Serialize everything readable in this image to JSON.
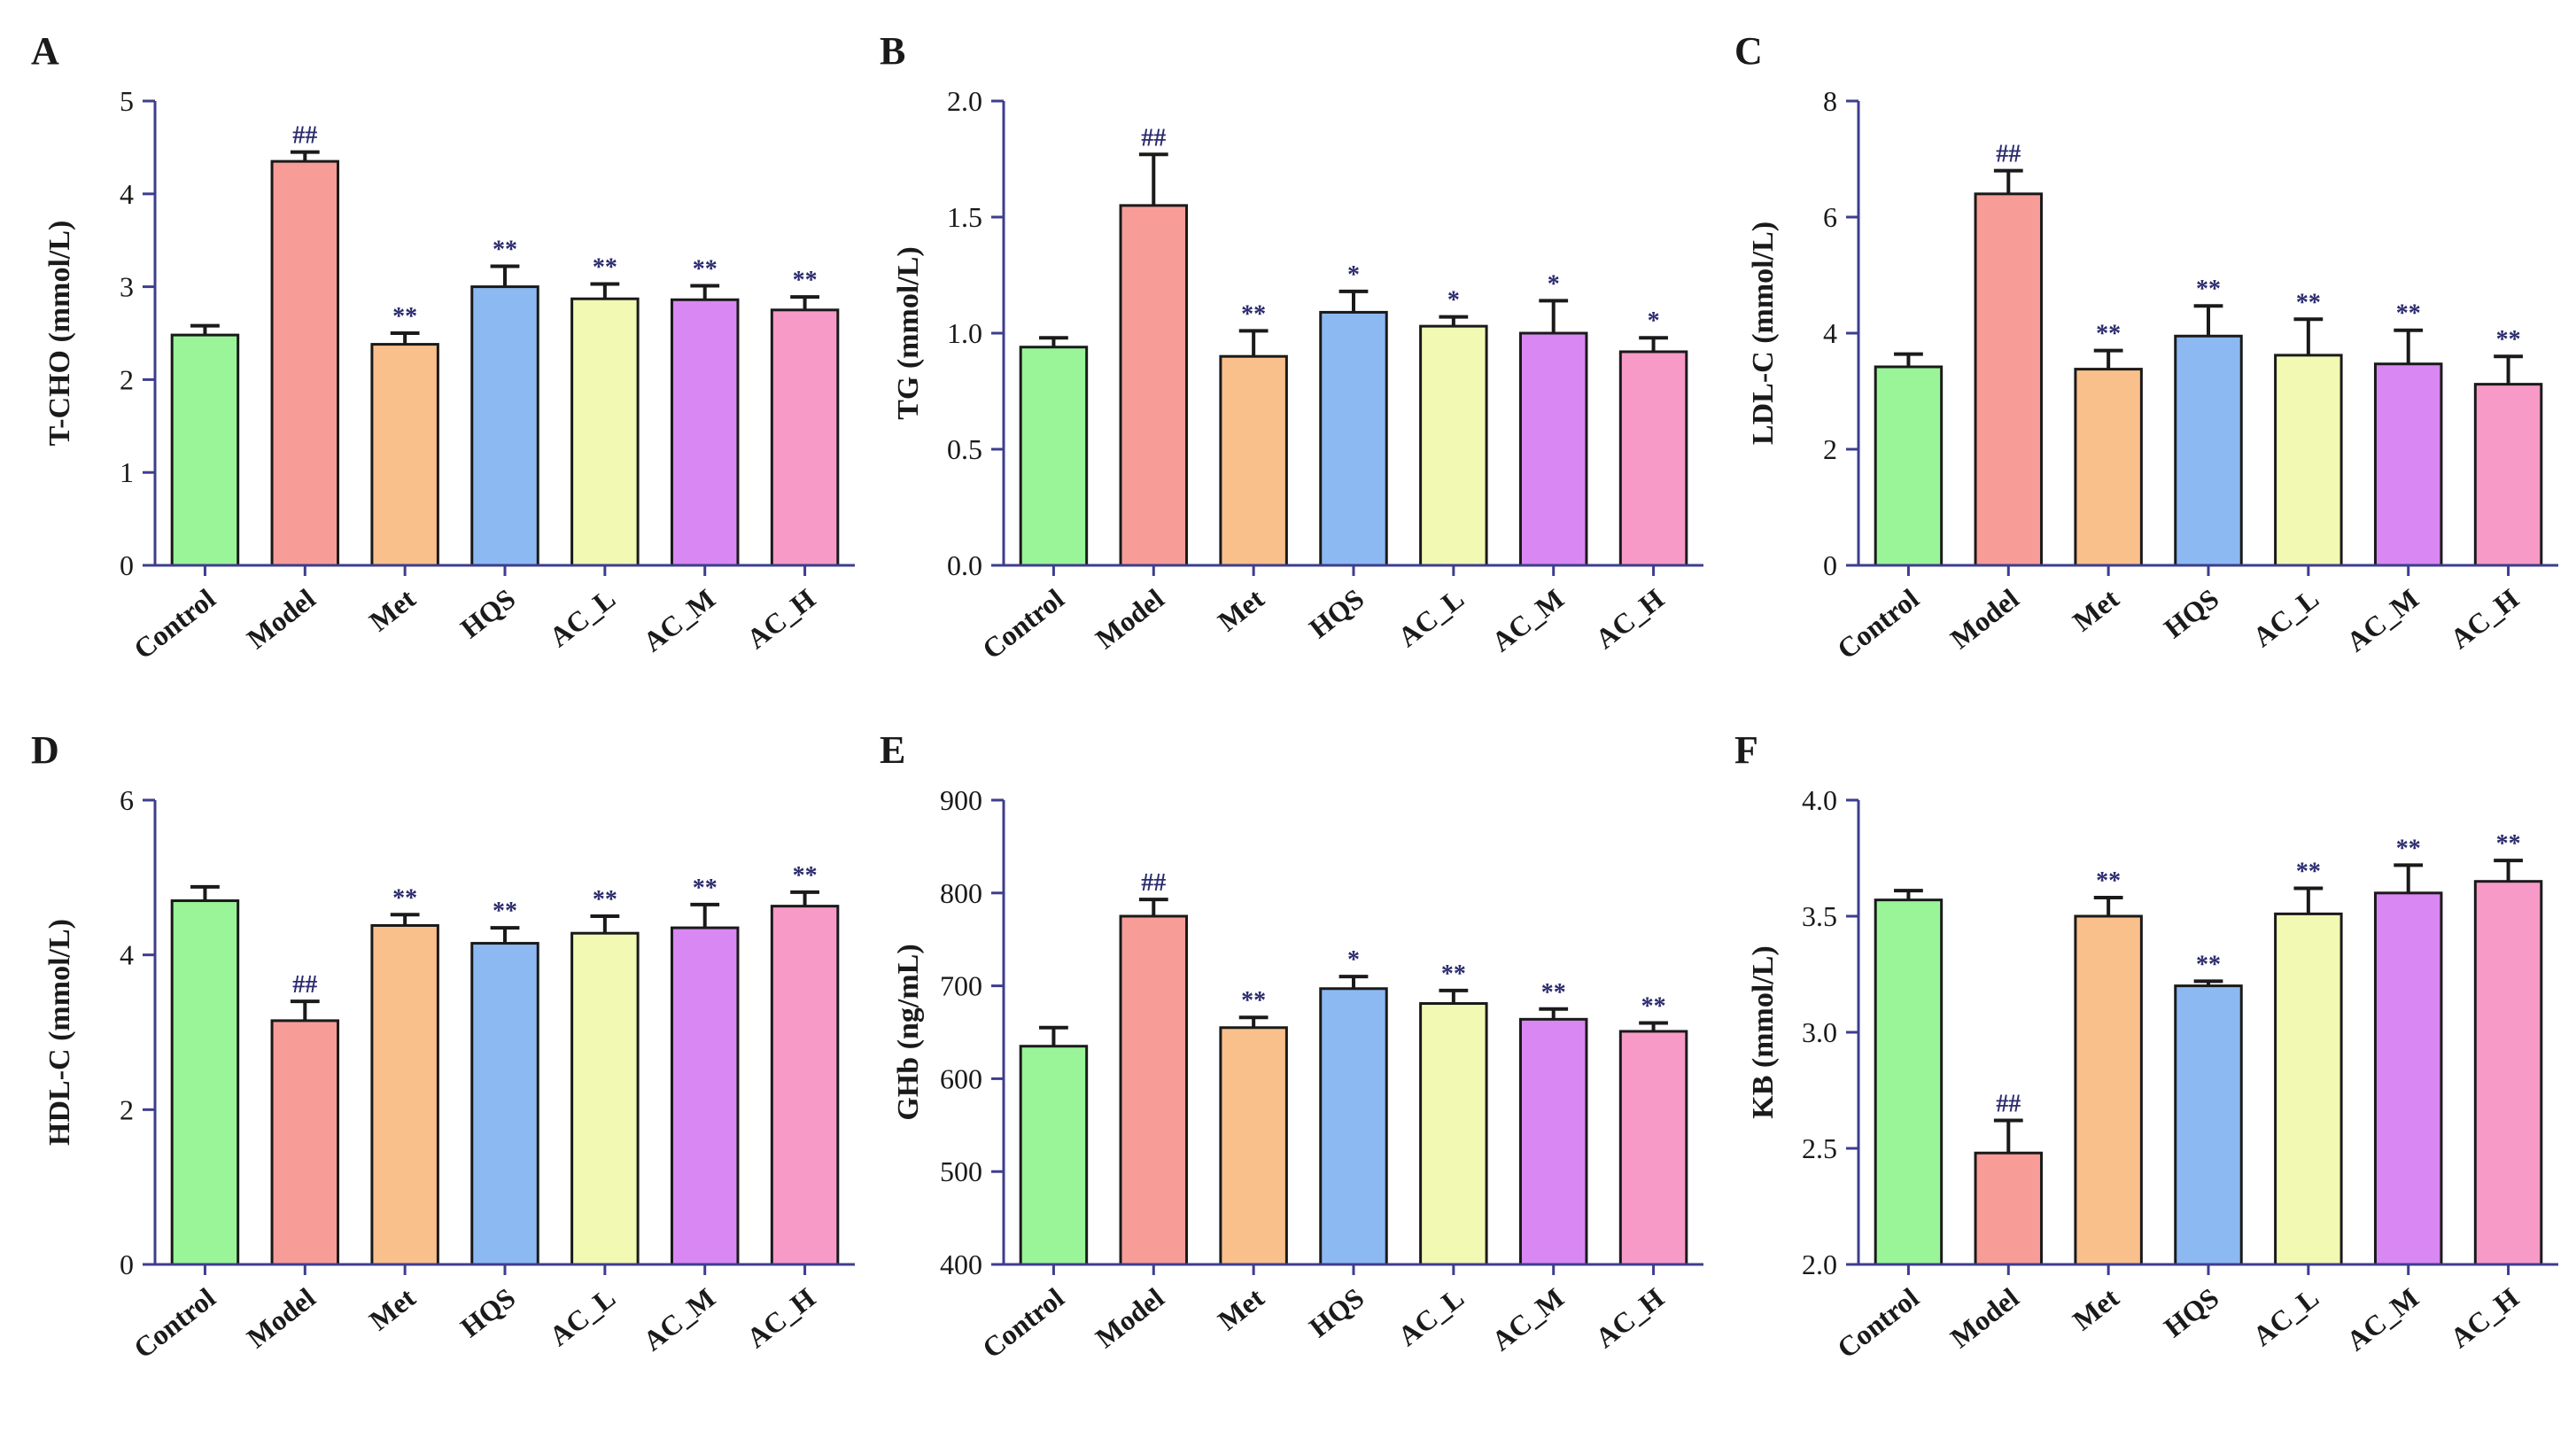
{
  "figure": {
    "background": "#ffffff",
    "axis_color": "#3d3d8f",
    "sig_color": "#2b2b6e"
  },
  "bar_colors": [
    "#99f598",
    "#f89c98",
    "#f9c08b",
    "#8db9f2",
    "#f2f9b2",
    "#d987f2",
    "#f89ac8"
  ],
  "chart_data": [
    {
      "type": "bar",
      "panel": "A",
      "title": "",
      "xlabel": "",
      "ylabel": "T-CHO (mmol/L)",
      "categories": [
        "Control",
        "Model",
        "Met",
        "HQS",
        "AC_L",
        "AC_M",
        "AC_H"
      ],
      "values": [
        2.48,
        4.35,
        2.38,
        3.0,
        2.87,
        2.86,
        2.75
      ],
      "errors": [
        0.1,
        0.1,
        0.12,
        0.22,
        0.16,
        0.15,
        0.14
      ],
      "annotations": [
        "",
        "##",
        "**",
        "**",
        "**",
        "**",
        "**"
      ],
      "ylim": [
        0,
        5
      ],
      "yticks": [
        "0",
        "1",
        "2",
        "3",
        "4",
        "5"
      ],
      "grid": false
    },
    {
      "type": "bar",
      "panel": "B",
      "title": "",
      "xlabel": "",
      "ylabel": "TG (mmol/L)",
      "categories": [
        "Control",
        "Model",
        "Met",
        "HQS",
        "AC_L",
        "AC_M",
        "AC_H"
      ],
      "values": [
        0.94,
        1.55,
        0.9,
        1.09,
        1.03,
        1.0,
        0.92
      ],
      "errors": [
        0.04,
        0.22,
        0.11,
        0.09,
        0.04,
        0.14,
        0.06
      ],
      "annotations": [
        "",
        "##",
        "**",
        "*",
        "*",
        "*",
        "*"
      ],
      "ylim": [
        0,
        2.0
      ],
      "yticks": [
        "0.0",
        "0.5",
        "1.0",
        "1.5",
        "2.0"
      ],
      "grid": false
    },
    {
      "type": "bar",
      "panel": "C",
      "title": "",
      "xlabel": "",
      "ylabel": "LDL-C (mmol/L)",
      "categories": [
        "Control",
        "Model",
        "Met",
        "HQS",
        "AC_L",
        "AC_M",
        "AC_H"
      ],
      "values": [
        3.42,
        6.4,
        3.38,
        3.95,
        3.62,
        3.47,
        3.12
      ],
      "errors": [
        0.22,
        0.4,
        0.32,
        0.52,
        0.62,
        0.58,
        0.48
      ],
      "annotations": [
        "",
        "##",
        "**",
        "**",
        "**",
        "**",
        "**"
      ],
      "ylim": [
        0,
        8
      ],
      "yticks": [
        "0",
        "2",
        "4",
        "6",
        "8"
      ],
      "grid": false
    },
    {
      "type": "bar",
      "panel": "D",
      "title": "",
      "xlabel": "",
      "ylabel": "HDL-C (mmol/L)",
      "categories": [
        "Control",
        "Model",
        "Met",
        "HQS",
        "AC_L",
        "AC_M",
        "AC_H"
      ],
      "values": [
        4.7,
        3.15,
        4.38,
        4.15,
        4.28,
        4.35,
        4.63
      ],
      "errors": [
        0.18,
        0.25,
        0.14,
        0.2,
        0.22,
        0.3,
        0.18
      ],
      "annotations": [
        "",
        "##",
        "**",
        "**",
        "**",
        "**",
        "**"
      ],
      "ylim": [
        0,
        6
      ],
      "yticks": [
        "0",
        "2",
        "4",
        "6"
      ],
      "grid": false
    },
    {
      "type": "bar",
      "panel": "E",
      "title": "",
      "xlabel": "",
      "ylabel": "GHb (ng/mL)",
      "categories": [
        "Control",
        "Model",
        "Met",
        "HQS",
        "AC_L",
        "AC_M",
        "AC_H"
      ],
      "values": [
        635,
        775,
        655,
        697,
        681,
        664,
        651
      ],
      "errors": [
        20,
        18,
        11,
        13,
        14,
        11,
        9
      ],
      "annotations": [
        "",
        "##",
        "**",
        "*",
        "**",
        "**",
        "**"
      ],
      "ylim": [
        400,
        900
      ],
      "yticks": [
        "400",
        "500",
        "600",
        "700",
        "800",
        "900"
      ],
      "grid": false
    },
    {
      "type": "bar",
      "panel": "F",
      "title": "",
      "xlabel": "",
      "ylabel": "KB (mmol/L)",
      "categories": [
        "Control",
        "Model",
        "Met",
        "HQS",
        "AC_L",
        "AC_M",
        "AC_H"
      ],
      "values": [
        3.57,
        2.48,
        3.5,
        3.2,
        3.51,
        3.6,
        3.65
      ],
      "errors": [
        0.04,
        0.14,
        0.08,
        0.02,
        0.11,
        0.12,
        0.09
      ],
      "annotations": [
        "",
        "##",
        "**",
        "**",
        "**",
        "**",
        "**"
      ],
      "ylim": [
        2.0,
        4.0
      ],
      "yticks": [
        "2.0",
        "2.5",
        "3.0",
        "3.5",
        "4.0"
      ],
      "grid": false
    }
  ]
}
